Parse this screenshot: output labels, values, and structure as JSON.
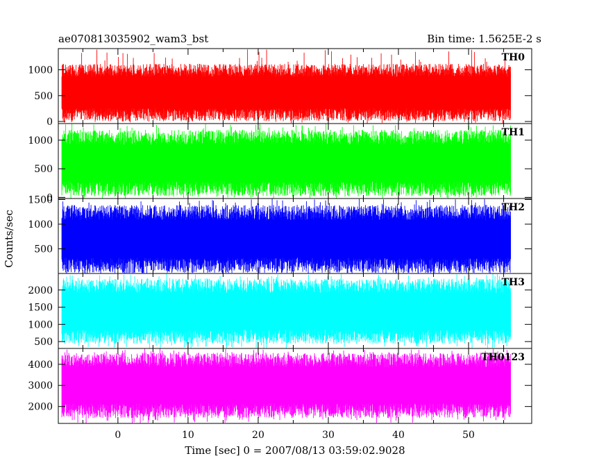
{
  "header": {
    "title": "ae070813035902_wam3_bst",
    "bin_time": "Bin time: 1.5625E-2 s"
  },
  "chart_data": {
    "type": "line",
    "title": "ae070813035902_wam3_bst",
    "subtitle": "Bin time: 1.5625E-2 s",
    "xlabel": "Time [sec] 0 = 2007/08/13 03:59:02.9028",
    "ylabel": "Counts/sec",
    "xlim": [
      -8.5,
      59
    ],
    "data_x_range": [
      -8,
      56
    ],
    "bin_time": 0.015625,
    "x_ticks": [
      0,
      10,
      20,
      30,
      40,
      50
    ],
    "x_tick_labels": [
      "0",
      "10",
      "20",
      "30",
      "40",
      "50"
    ],
    "grid": false,
    "panels": [
      {
        "name": "TH0",
        "color": "#ff0000",
        "ylim": [
          -40,
          1410
        ],
        "y_ticks": [
          0,
          500,
          1000
        ],
        "y_tick_labels": [
          "0",
          "500",
          "1000"
        ],
        "mean": 560,
        "typical_min": 40,
        "typical_max": 1150,
        "spike_max": 1410
      },
      {
        "name": "TH1",
        "color": "#00ff00",
        "ylim": [
          -20,
          1290
        ],
        "y_ticks": [
          0,
          500,
          1000
        ],
        "y_tick_labels": [
          "0",
          "500",
          "1000"
        ],
        "mean": 600,
        "typical_min": 40,
        "typical_max": 1200,
        "spike_max": 1290
      },
      {
        "name": "TH2",
        "color": "#0000ff",
        "ylim": [
          0,
          1520
        ],
        "y_ticks": [
          500,
          1000,
          1500
        ],
        "y_tick_labels": [
          "500",
          "1000",
          "1500"
        ],
        "mean": 700,
        "typical_min": 20,
        "typical_max": 1400,
        "spike_max": 1520
      },
      {
        "name": "TH3",
        "color": "#00ffff",
        "ylim": [
          300,
          2480
        ],
        "y_ticks": [
          500,
          1000,
          1500,
          2000
        ],
        "y_tick_labels": [
          "500",
          "1000",
          "1500",
          "2000"
        ],
        "mean": 1380,
        "typical_min": 400,
        "typical_max": 2300,
        "spike_max": 2480
      },
      {
        "name": "TH0123",
        "color": "#ff00ff",
        "ylim": [
          1200,
          4750
        ],
        "y_ticks": [
          2000,
          3000,
          4000
        ],
        "y_tick_labels": [
          "2000",
          "3000",
          "4000"
        ],
        "mean": 3000,
        "typical_min": 1400,
        "typical_max": 4500,
        "spike_max": 4750
      }
    ]
  }
}
